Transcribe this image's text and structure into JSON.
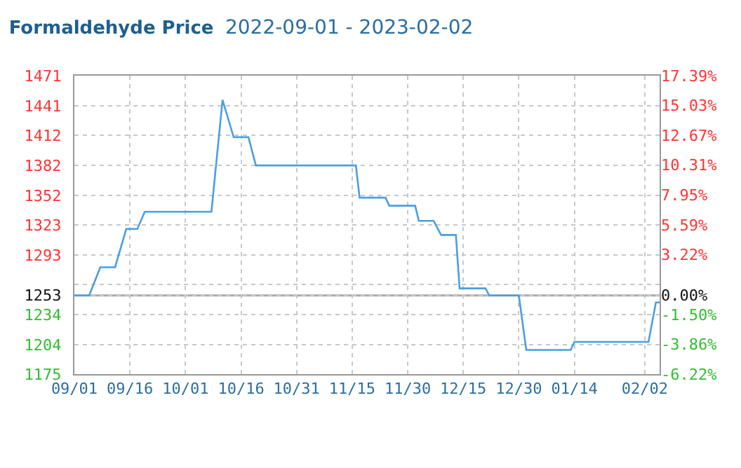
{
  "chart_data": {
    "type": "line",
    "title": "Formaldehyde Price",
    "subtitle": "2022-09-01 - 2023-02-02",
    "x": [
      "2022-09-01",
      "2022-09-05",
      "2022-09-08",
      "2022-09-12",
      "2022-09-15",
      "2022-09-18",
      "2022-09-20",
      "2022-10-08",
      "2022-10-11",
      "2022-10-14",
      "2022-10-18",
      "2022-10-20",
      "2022-11-16",
      "2022-11-17",
      "2022-11-24",
      "2022-11-25",
      "2022-12-02",
      "2022-12-03",
      "2022-12-07",
      "2022-12-09",
      "2022-12-13",
      "2022-12-14",
      "2022-12-21",
      "2022-12-22",
      "2022-12-30",
      "2023-01-01",
      "2023-01-13",
      "2023-01-14",
      "2023-02-03",
      "2023-02-05",
      "2023-02-06"
    ],
    "series": [
      {
        "color": "#4a9fdf",
        "values": [
          1253,
          1253,
          1281,
          1281,
          1319,
          1319,
          1336,
          1336,
          1447,
          1410,
          1410,
          1382,
          1382,
          1350,
          1350,
          1342,
          1342,
          1327,
          1327,
          1313,
          1313,
          1260,
          1260,
          1253,
          1253,
          1199,
          1199,
          1207,
          1207,
          1246,
          1246
        ]
      }
    ],
    "xlim": [
      "2022-09-01",
      "2023-02-06"
    ],
    "xticks": [
      {
        "value": "2022-09-01",
        "label": "09/01"
      },
      {
        "value": "2022-09-16",
        "label": "09/16"
      },
      {
        "value": "2022-10-01",
        "label": "10/01"
      },
      {
        "value": "2022-10-16",
        "label": "10/16"
      },
      {
        "value": "2022-10-31",
        "label": "10/31"
      },
      {
        "value": "2022-11-15",
        "label": "11/15"
      },
      {
        "value": "2022-11-30",
        "label": "11/30"
      },
      {
        "value": "2022-12-15",
        "label": "12/15"
      },
      {
        "value": "2022-12-30",
        "label": "12/30"
      },
      {
        "value": "2023-01-14",
        "label": "01/14"
      },
      {
        "value": "2023-02-02",
        "label": "02/02"
      }
    ],
    "ylim": [
      1175,
      1471
    ],
    "yticks": [
      1175,
      1204,
      1234,
      1253,
      {
        "value": 1264,
        "label": null
      },
      1293,
      1323,
      1352,
      1382,
      1412,
      1441,
      1471
    ],
    "y2lim": [
      -6.22,
      17.39
    ],
    "y2ticks": [
      {
        "value": -6.22,
        "label": "-6.22%"
      },
      {
        "value": -3.86,
        "label": "-3.86%"
      },
      {
        "value": -1.5,
        "label": "-1.50%"
      },
      {
        "value": 0,
        "label": "0.00%"
      },
      {
        "value": 3.22,
        "label": "3.22%"
      },
      {
        "value": 5.59,
        "label": "5.59%"
      },
      {
        "value": 7.95,
        "label": "7.95%"
      },
      {
        "value": 10.31,
        "label": "10.31%"
      },
      {
        "value": 12.67,
        "label": "12.67%"
      },
      {
        "value": 15.03,
        "label": "15.03%"
      },
      {
        "value": 17.39,
        "label": "17.39%"
      }
    ],
    "ref_lines": [
      {
        "axis": "y",
        "value": 1253,
        "color": "#aaaaaa"
      }
    ],
    "grid": true,
    "legend": false,
    "marker": "none",
    "line_style": "solid"
  }
}
